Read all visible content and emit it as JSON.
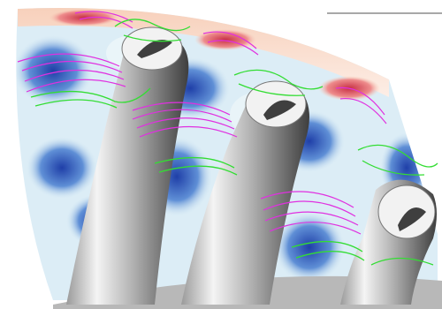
{
  "scene": {
    "kind": "cfd-visualization",
    "subjects": [
      "turbine-blade",
      "contour-slice",
      "streamlines",
      "vortex-lines"
    ],
    "colors": {
      "contour_low": "#2b4fb8",
      "contour_mid": "#8fc3e6",
      "contour_light": "#e6f2f8",
      "contour_high": "#d85060",
      "contour_warm": "#f4c0a8",
      "streamline_green": "#33dd33",
      "vortex_magenta": "#e030e0",
      "blade_light": "#f0f0f0",
      "blade_dark": "#4a4a4a",
      "hub_gray": "#b8b8b8"
    }
  }
}
